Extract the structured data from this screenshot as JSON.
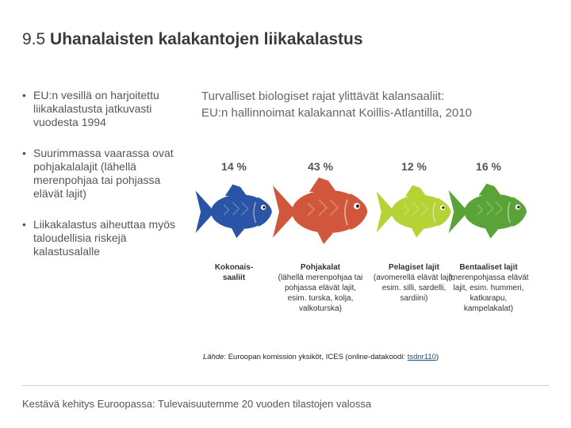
{
  "title": {
    "number": "9.5",
    "text": "Uhanalaisten kalakantojen liikakalastus"
  },
  "bullets": [
    "EU:n vesillä on harjoitettu liikakalastusta jatkuvasti vuodesta 1994",
    "Suurimmassa vaarassa ovat pohjakalalajit (lähellä merenpohjaa tai pohjassa elävät lajit)",
    "Liikakalastus aiheuttaa myös taloudellisia riskejä kalastusalalle"
  ],
  "chart": {
    "title_line1": "Turvalliset biologiset rajat ylittävät kalansaaliit:",
    "title_line2": "EU:n hallinnoimat kalakannat Koillis-Atlantilla, 2010"
  },
  "chart_data": {
    "type": "bar",
    "categories": [
      "Kokonais-saaliit",
      "Pohjakalat",
      "Pelagiset lajit",
      "Bentaaliset lajit"
    ],
    "values": [
      14,
      43,
      12,
      16
    ],
    "labels": [
      "14 %",
      "43 %",
      "12 %",
      "16 %"
    ],
    "descriptions": [
      "",
      "(lähellä merenpohjaa tai pohjassa elävät lajit, esim. turska, kolja, valkoturska)",
      "(avomerellä elävät lajit, esim. silli, sardelli, sardiini)",
      "(merenpohjassa elävät lajit, esim. hummeri, katkarapu, kampelakalat)"
    ],
    "colors": [
      "#2a55a6",
      "#d0573b",
      "#b5d334",
      "#5aa338"
    ],
    "title": "Turvalliset biologiset rajat ylittävät kalansaaliit: EU:n hallinnoimat kalakannat Koillis-Atlantilla, 2010"
  },
  "source": {
    "label": "Lähde",
    "text": ": Euroopan komission yksiköt, ICES (online-datakoodi: ",
    "code": "tsdnr110",
    "end": ")"
  },
  "footer": "Kestävä kehitys Euroopassa: Tulevaisuutemme 20 vuoden tilastojen valossa"
}
